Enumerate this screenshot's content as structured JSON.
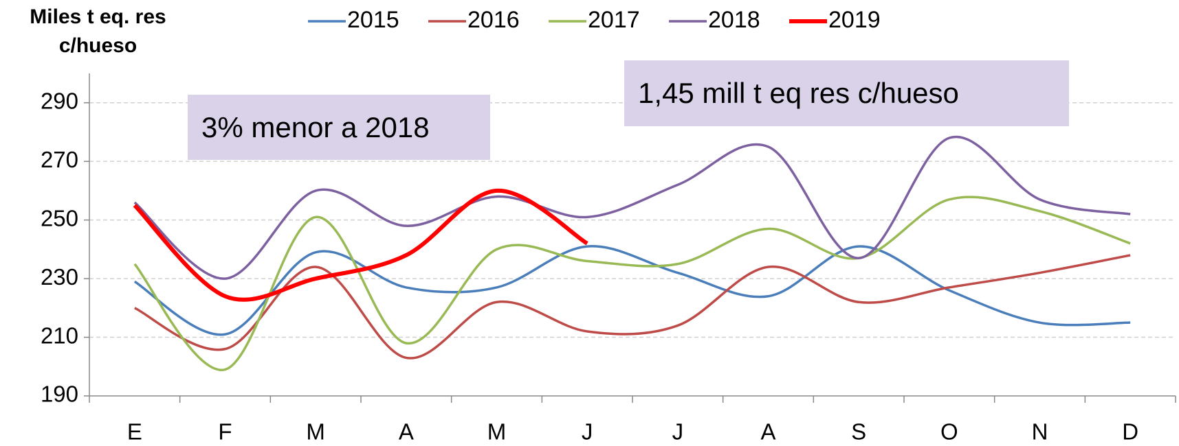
{
  "chart_data": {
    "type": "line",
    "y_label": "Miles t eq. res c/hueso",
    "annotations": [
      "3% menor a 2018",
      "1,45 mill t eq res c/hueso"
    ],
    "categories": [
      "E",
      "F",
      "M",
      "A",
      "M",
      "J",
      "J",
      "A",
      "S",
      "O",
      "N",
      "D"
    ],
    "series": [
      {
        "name": "2015",
        "color": "#4a7ebb",
        "values": [
          229,
          211,
          239,
          227,
          227,
          241,
          232,
          224,
          241,
          226,
          215,
          215
        ]
      },
      {
        "name": "2016",
        "color": "#be4b48",
        "values": [
          220,
          206,
          234,
          203,
          222,
          212,
          214,
          234,
          222,
          227,
          232,
          238
        ]
      },
      {
        "name": "2017",
        "color": "#98b954",
        "values": [
          235,
          199,
          251,
          208,
          240,
          236,
          235,
          247,
          237,
          257,
          253,
          242
        ]
      },
      {
        "name": "2018",
        "color": "#7d60a0",
        "values": [
          256,
          230,
          260,
          248,
          258,
          251,
          262,
          275,
          237,
          278,
          257,
          252
        ]
      },
      {
        "name": "2019",
        "color": "#ff0000",
        "values": [
          255,
          224,
          230,
          238,
          260,
          242,
          null,
          null,
          null,
          null,
          null,
          null
        ]
      }
    ],
    "ylim": [
      190,
      300
    ],
    "yticks": [
      190,
      210,
      230,
      250,
      270,
      290
    ],
    "grid": true,
    "legend": "top"
  }
}
